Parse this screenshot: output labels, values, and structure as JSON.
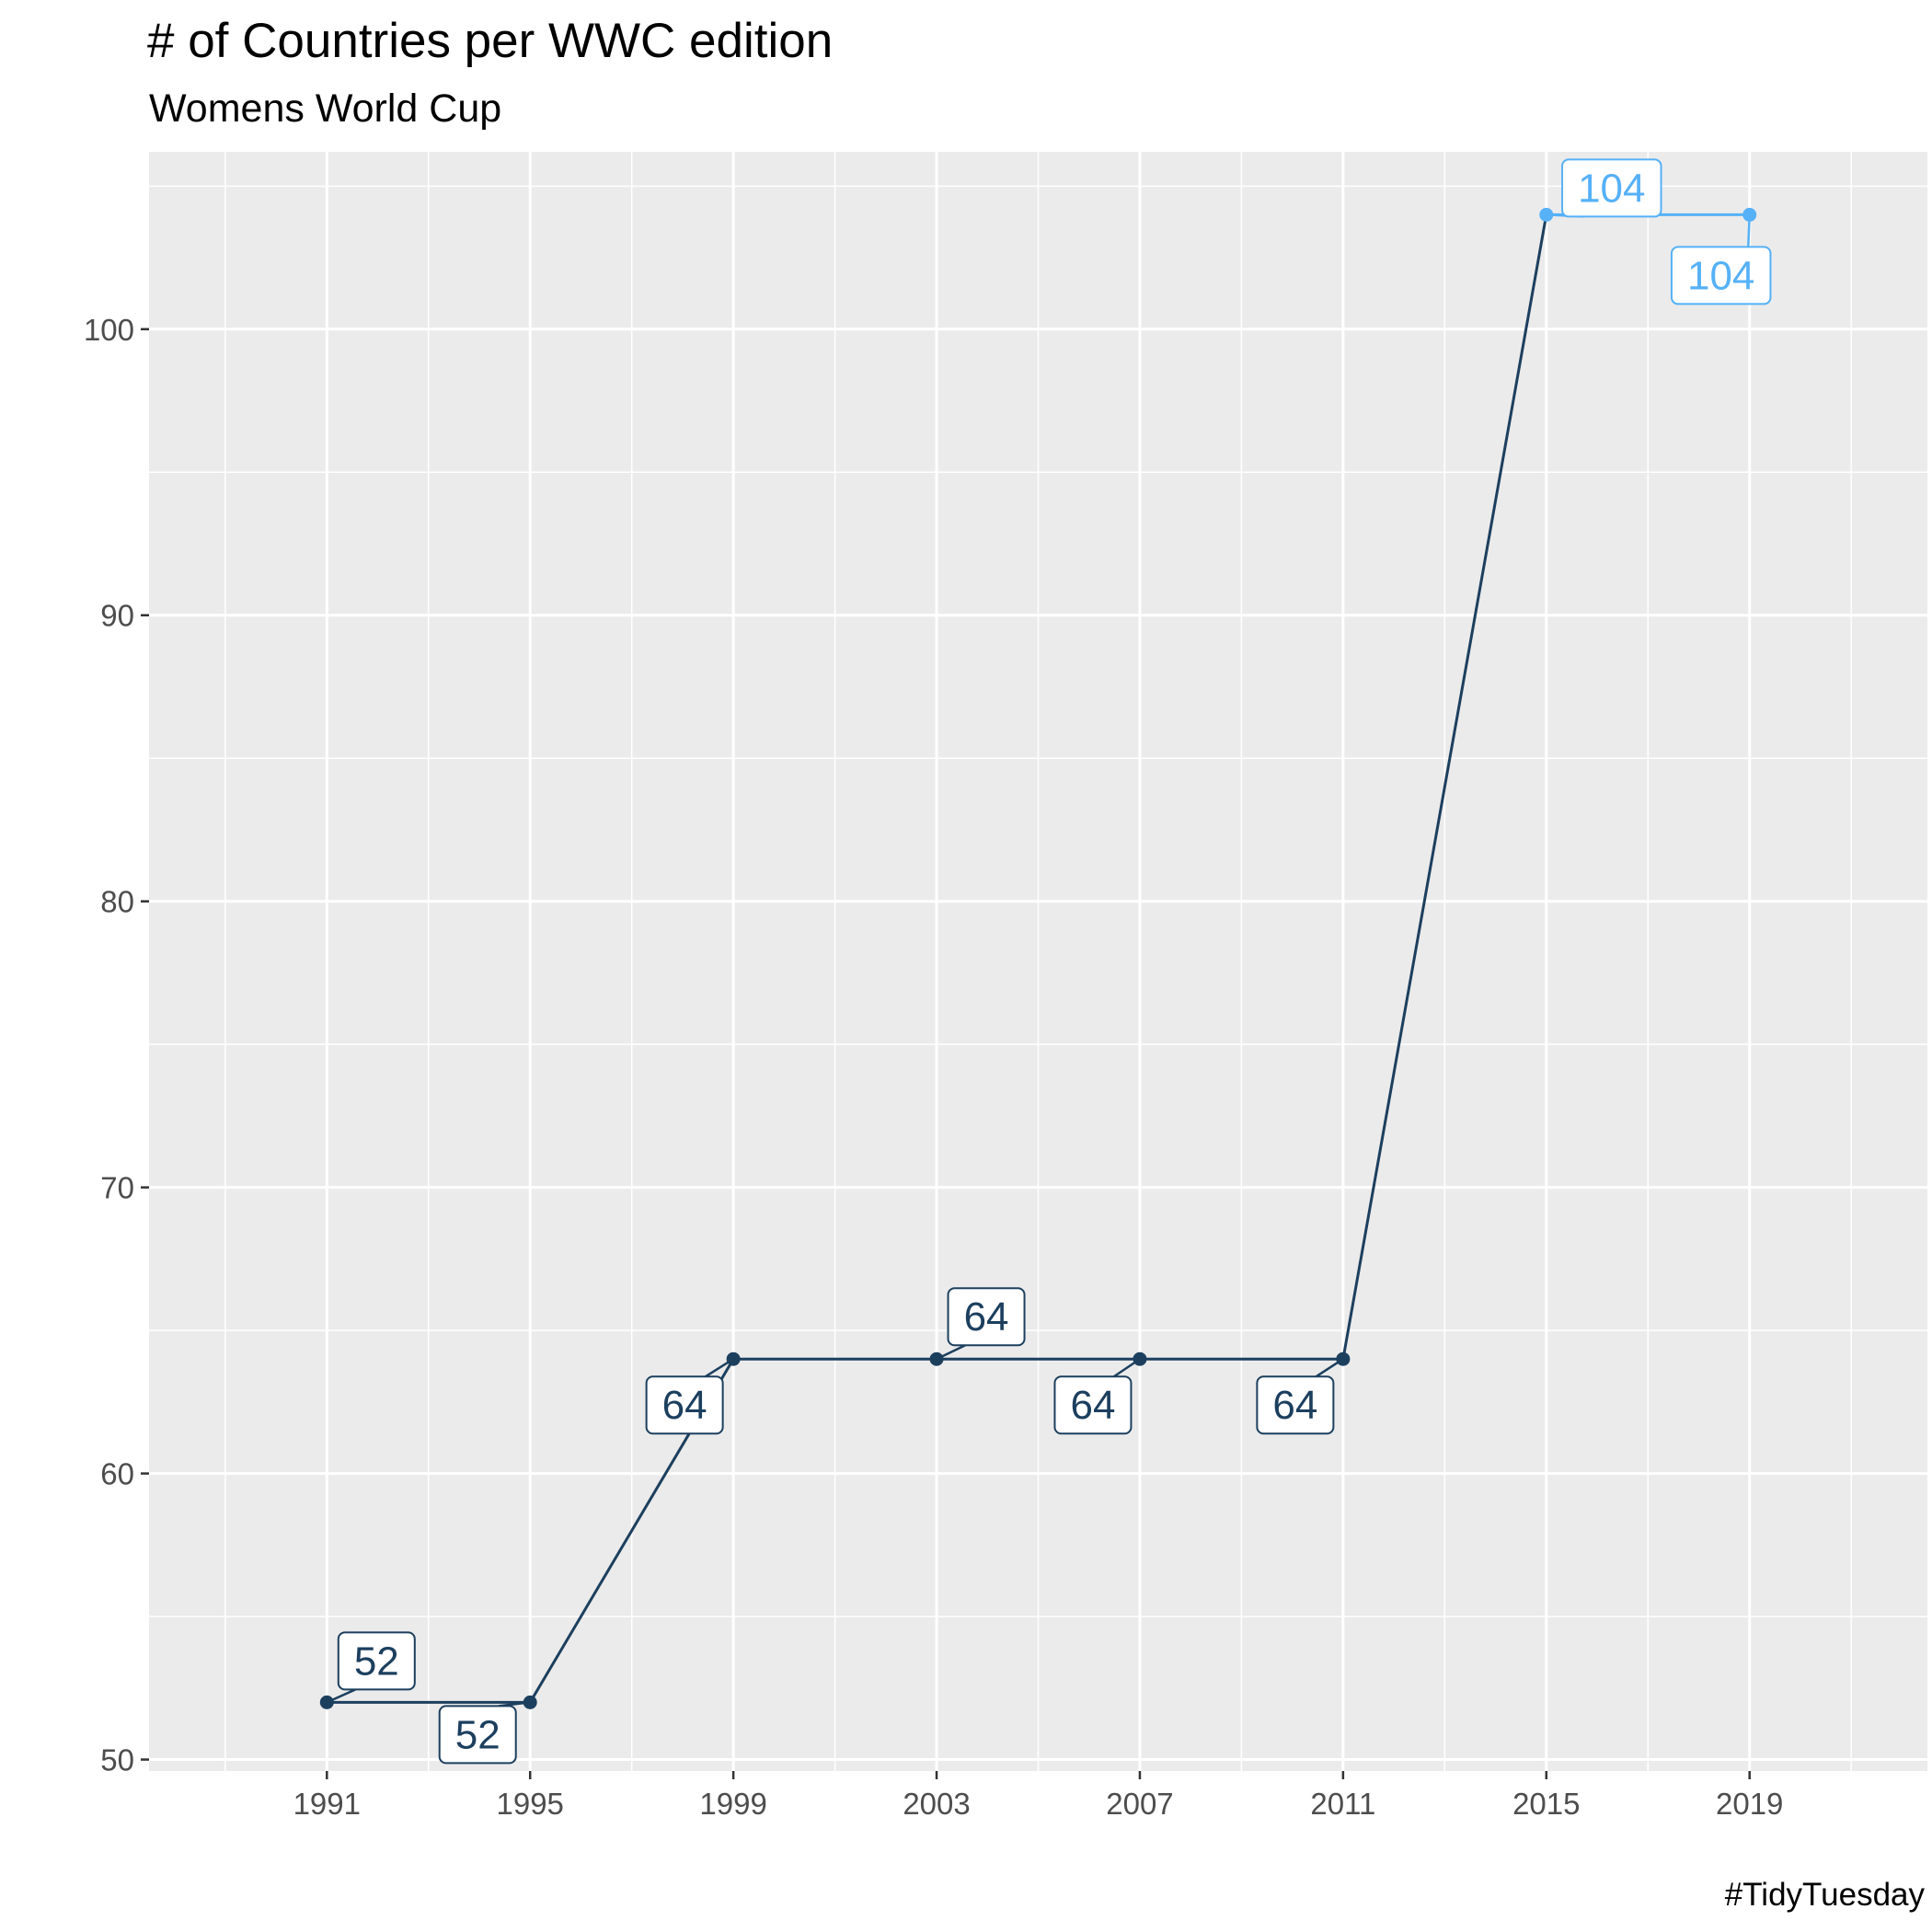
{
  "chart_data": {
    "type": "line",
    "title": "# of Countries per WWC edition",
    "subtitle": "Womens World Cup",
    "caption": "#TidyTuesday",
    "x": [
      1991,
      1995,
      1999,
      2003,
      2007,
      2011,
      2015,
      2019
    ],
    "values": [
      52,
      52,
      64,
      64,
      64,
      64,
      104,
      104
    ],
    "labels": [
      "52",
      "52",
      "64",
      "64",
      "64",
      "64",
      "104",
      "104"
    ],
    "x_ticks": [
      1991,
      1995,
      1999,
      2003,
      2007,
      2011,
      2015,
      2019
    ],
    "y_ticks": [
      50,
      60,
      70,
      80,
      90,
      100
    ],
    "xlim": [
      1987.5,
      2022.5
    ],
    "ylim": [
      49.6,
      106.2
    ],
    "grid": true,
    "legend": "none",
    "colors": {
      "main": "#1c3f5e",
      "highlight": "#56b1f7",
      "panel": "#ebebeb",
      "grid": "#ffffff"
    },
    "highlight_from_index": 6
  }
}
